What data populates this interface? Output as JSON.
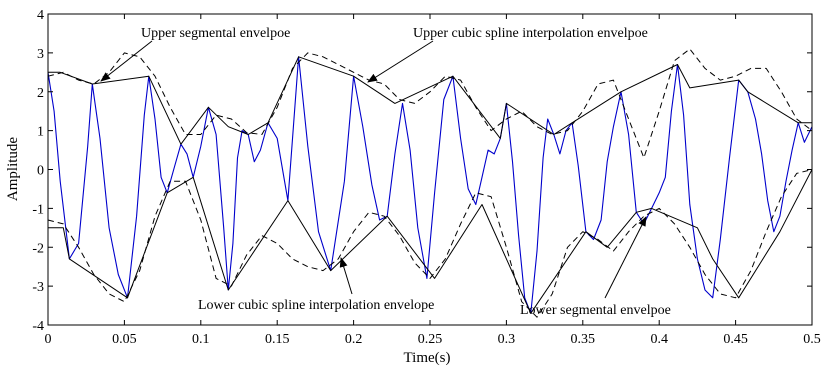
{
  "chart_data": {
    "type": "line",
    "xlabel": "Time(s)",
    "ylabel": "Amplitude",
    "xlim": [
      0,
      0.5
    ],
    "ylim": [
      -4,
      4
    ],
    "xticks": [
      "0",
      "0.05",
      "0.1",
      "0.15",
      "0.2",
      "0.25",
      "0.3",
      "0.35",
      "0.4",
      "0.45",
      "0.5"
    ],
    "yticks": [
      "4",
      "3",
      "2",
      "1",
      "0",
      "-1",
      "-2",
      "-3",
      "-4"
    ],
    "grid": false,
    "series": [
      {
        "role": "signal",
        "color": "#0000cc",
        "style": "solid",
        "x": [
          0,
          0.004,
          0.008,
          0.014,
          0.02,
          0.026,
          0.029,
          0.034,
          0.04,
          0.046,
          0.052,
          0.058,
          0.063,
          0.066,
          0.07,
          0.074,
          0.078,
          0.083,
          0.087,
          0.091,
          0.095,
          0.1,
          0.105,
          0.11,
          0.115,
          0.118,
          0.121,
          0.124,
          0.127,
          0.131,
          0.135,
          0.139,
          0.144,
          0.15,
          0.157,
          0.164,
          0.17,
          0.177,
          0.185,
          0.194,
          0.2,
          0.206,
          0.212,
          0.217,
          0.222,
          0.227,
          0.232,
          0.237,
          0.242,
          0.248,
          0.253,
          0.259,
          0.265,
          0.27,
          0.275,
          0.28,
          0.284,
          0.288,
          0.292,
          0.296,
          0.3,
          0.304,
          0.308,
          0.312,
          0.316,
          0.32,
          0.324,
          0.327,
          0.331,
          0.335,
          0.339,
          0.343,
          0.347,
          0.352,
          0.357,
          0.362,
          0.366,
          0.37,
          0.375,
          0.38,
          0.385,
          0.39,
          0.395,
          0.4,
          0.404,
          0.408,
          0.412,
          0.416,
          0.42,
          0.425,
          0.43,
          0.435,
          0.44,
          0.446,
          0.452,
          0.458,
          0.463,
          0.467,
          0.471,
          0.475,
          0.479,
          0.483,
          0.487,
          0.491,
          0.495,
          0.5
        ],
        "y": [
          2.5,
          1.5,
          -0.3,
          -2.3,
          -1.9,
          0.6,
          2.2,
          0.8,
          -1.5,
          -2.7,
          -3.3,
          -1.2,
          1.4,
          2.4,
          1.3,
          -0.2,
          -0.6,
          0.1,
          0.65,
          0.4,
          -0.2,
          0.6,
          1.6,
          0.9,
          -1.5,
          -3.1,
          -1.9,
          0.3,
          1.0,
          0.9,
          0.2,
          0.5,
          1.2,
          0.8,
          -0.8,
          2.9,
          0.6,
          -1.6,
          -2.6,
          -0.3,
          2.4,
          1.1,
          -0.4,
          -1.3,
          -1.2,
          0.4,
          1.7,
          0.5,
          -1.5,
          -2.8,
          -0.6,
          1.8,
          2.4,
          0.8,
          -0.5,
          -0.9,
          -0.2,
          0.5,
          0.4,
          0.8,
          1.7,
          0.2,
          -1.7,
          -3.3,
          -3.7,
          -2.1,
          0.3,
          1.3,
          0.9,
          0.4,
          1.0,
          1.2,
          0.1,
          -1.6,
          -1.8,
          -1.3,
          0.2,
          1.1,
          2.0,
          0.9,
          -1.1,
          -1.4,
          -1.0,
          -0.6,
          -0.2,
          1.5,
          2.7,
          1.4,
          -0.9,
          -2.3,
          -3.1,
          -3.3,
          -1.8,
          0.3,
          2.3,
          2.0,
          1.3,
          0.4,
          -0.8,
          -1.6,
          -1.2,
          -0.3,
          0.5,
          1.2,
          0.7,
          1.1
        ]
      },
      {
        "role": "upper-segmental-envelope",
        "color": "#000000",
        "style": "solid",
        "x": [
          0,
          0.008,
          0.029,
          0.066,
          0.087,
          0.105,
          0.118,
          0.131,
          0.144,
          0.164,
          0.2,
          0.227,
          0.265,
          0.296,
          0.3,
          0.331,
          0.343,
          0.375,
          0.412,
          0.42,
          0.452,
          0.458,
          0.491,
          0.5
        ],
        "y": [
          2.5,
          2.5,
          2.2,
          2.4,
          0.65,
          1.6,
          1.1,
          0.9,
          1.2,
          2.9,
          2.4,
          1.7,
          2.4,
          0.8,
          1.7,
          0.9,
          1.2,
          2.0,
          2.7,
          2.1,
          2.3,
          2.0,
          1.2,
          1.2
        ]
      },
      {
        "role": "lower-segmental-envelope",
        "color": "#000000",
        "style": "solid",
        "x": [
          0,
          0.01,
          0.014,
          0.052,
          0.078,
          0.095,
          0.118,
          0.157,
          0.185,
          0.222,
          0.253,
          0.284,
          0.316,
          0.352,
          0.366,
          0.385,
          0.395,
          0.425,
          0.435,
          0.452,
          0.479,
          0.5
        ],
        "y": [
          -1.5,
          -1.5,
          -2.3,
          -3.3,
          -0.6,
          -0.2,
          -3.1,
          -0.8,
          -2.6,
          -1.2,
          -2.8,
          -0.9,
          -3.7,
          -1.6,
          -2.0,
          -1.1,
          -1.0,
          -1.5,
          -2.3,
          -3.3,
          -1.6,
          0.0
        ]
      },
      {
        "role": "upper-cubic-spline-envelope",
        "color": "#000000",
        "style": "dashed",
        "x": [
          0,
          0.01,
          0.02,
          0.03,
          0.04,
          0.05,
          0.06,
          0.07,
          0.08,
          0.09,
          0.1,
          0.11,
          0.12,
          0.13,
          0.14,
          0.15,
          0.16,
          0.17,
          0.18,
          0.19,
          0.2,
          0.21,
          0.22,
          0.23,
          0.24,
          0.25,
          0.26,
          0.27,
          0.28,
          0.29,
          0.3,
          0.31,
          0.32,
          0.33,
          0.34,
          0.35,
          0.36,
          0.37,
          0.38,
          0.39,
          0.4,
          0.41,
          0.42,
          0.43,
          0.44,
          0.45,
          0.46,
          0.47,
          0.48,
          0.49,
          0.5
        ],
        "y": [
          2.4,
          2.5,
          2.3,
          2.2,
          2.5,
          3.0,
          2.9,
          2.4,
          1.6,
          0.9,
          0.9,
          1.4,
          1.3,
          0.95,
          0.9,
          1.6,
          2.6,
          3.0,
          2.9,
          2.7,
          2.5,
          2.3,
          2.2,
          1.8,
          1.7,
          2.0,
          2.4,
          2.3,
          1.6,
          1.0,
          1.3,
          1.5,
          1.1,
          0.9,
          1.0,
          1.5,
          2.2,
          2.3,
          1.3,
          0.3,
          1.5,
          2.8,
          3.1,
          2.6,
          2.3,
          2.4,
          2.6,
          2.6,
          2.0,
          1.3,
          1.0
        ]
      },
      {
        "role": "lower-cubic-spline-envelope",
        "color": "#000000",
        "style": "dashed",
        "x": [
          0,
          0.01,
          0.02,
          0.03,
          0.04,
          0.05,
          0.06,
          0.07,
          0.08,
          0.09,
          0.1,
          0.11,
          0.12,
          0.13,
          0.14,
          0.15,
          0.16,
          0.17,
          0.18,
          0.19,
          0.2,
          0.21,
          0.22,
          0.23,
          0.24,
          0.25,
          0.26,
          0.27,
          0.28,
          0.29,
          0.3,
          0.31,
          0.32,
          0.33,
          0.34,
          0.35,
          0.36,
          0.37,
          0.38,
          0.39,
          0.4,
          0.41,
          0.42,
          0.43,
          0.44,
          0.45,
          0.46,
          0.47,
          0.48,
          0.49,
          0.5
        ],
        "y": [
          -1.3,
          -1.4,
          -2.0,
          -2.7,
          -3.2,
          -3.4,
          -2.6,
          -1.2,
          -0.3,
          -0.3,
          -1.3,
          -2.8,
          -3.0,
          -2.2,
          -1.7,
          -1.9,
          -2.3,
          -2.5,
          -2.6,
          -2.3,
          -1.6,
          -1.1,
          -1.2,
          -1.7,
          -2.4,
          -2.8,
          -2.3,
          -1.4,
          -0.6,
          -0.7,
          -2.0,
          -3.4,
          -3.8,
          -3.2,
          -2.0,
          -1.6,
          -1.8,
          -2.1,
          -1.6,
          -1.2,
          -1.0,
          -1.4,
          -2.0,
          -2.7,
          -3.2,
          -3.3,
          -2.6,
          -1.6,
          -0.7,
          -0.1,
          0.0
        ]
      }
    ],
    "annotations": [
      {
        "text": "Upper segmental envelpoe",
        "target": [
          0.028,
          2.2
        ]
      },
      {
        "text": "Upper cubic spline interpolation envelpoe",
        "target": [
          0.207,
          2.3
        ]
      },
      {
        "text": "Lower cubic spline interpolation envelope",
        "target": [
          0.18,
          -2.6
        ]
      },
      {
        "text": "Lower segmental envelpoe",
        "target": [
          0.388,
          -1.1
        ]
      }
    ]
  }
}
